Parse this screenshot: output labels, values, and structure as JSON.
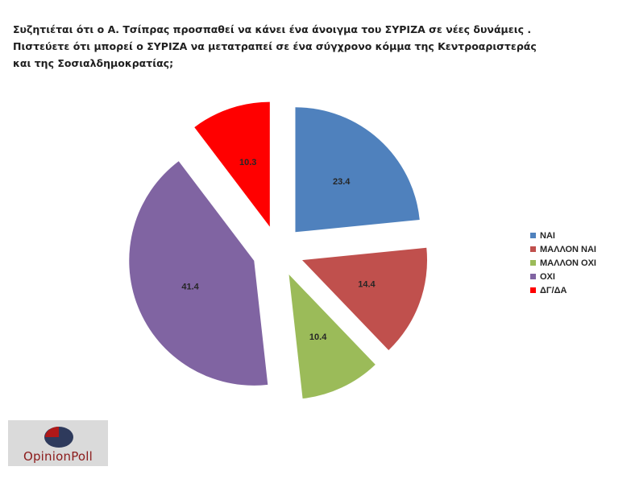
{
  "title": {
    "line1": "Συζητιέται ότι ο Α. Τσίπρας προσπαθεί να κάνει ένα άνοιγμα του ΣΥΡΙΖΑ σε νέες δυνάμεις .",
    "line2": "Πιστεύετε ότι μπορεί ο ΣΥΡΙΖΑ να μετατραπεί σε ένα σύγχρονο κόμμα της Κεντροαριστεράς",
    "line3": "και της Σοσιαλδημοκρατίας;"
  },
  "chart_data": {
    "type": "pie",
    "categories": [
      "ΝΑΙ",
      "ΜΑΛΛΟΝ ΝΑΙ",
      "ΜΑΛΛΟΝ ΟΧΙ",
      "ΟΧΙ",
      "ΔΓ/ΔΑ"
    ],
    "values": [
      23.4,
      14.4,
      10.4,
      41.4,
      10.3
    ],
    "data_labels": [
      "23.4",
      "14.4",
      "10.4",
      "41.4",
      "10.3"
    ],
    "colors": [
      "#4f81bd",
      "#c0504d",
      "#9bbb59",
      "#8064a2",
      "#ff0000"
    ],
    "exploded": true,
    "legend_position": "right"
  },
  "legend": {
    "items": [
      {
        "label": "ΝΑΙ",
        "color": "#4f81bd"
      },
      {
        "label": "ΜΑΛΛΟΝ ΝΑΙ",
        "color": "#c0504d"
      },
      {
        "label": "ΜΑΛΛΟΝ ΟΧΙ",
        "color": "#9bbb59"
      },
      {
        "label": "ΟΧΙ",
        "color": "#8064a2"
      },
      {
        "label": "ΔΓ/ΔΑ",
        "color": "#ff0000"
      }
    ]
  },
  "logo": {
    "text": "OpinionPoll",
    "colors": {
      "dark": "#2e3a5c",
      "red": "#b01818"
    }
  }
}
